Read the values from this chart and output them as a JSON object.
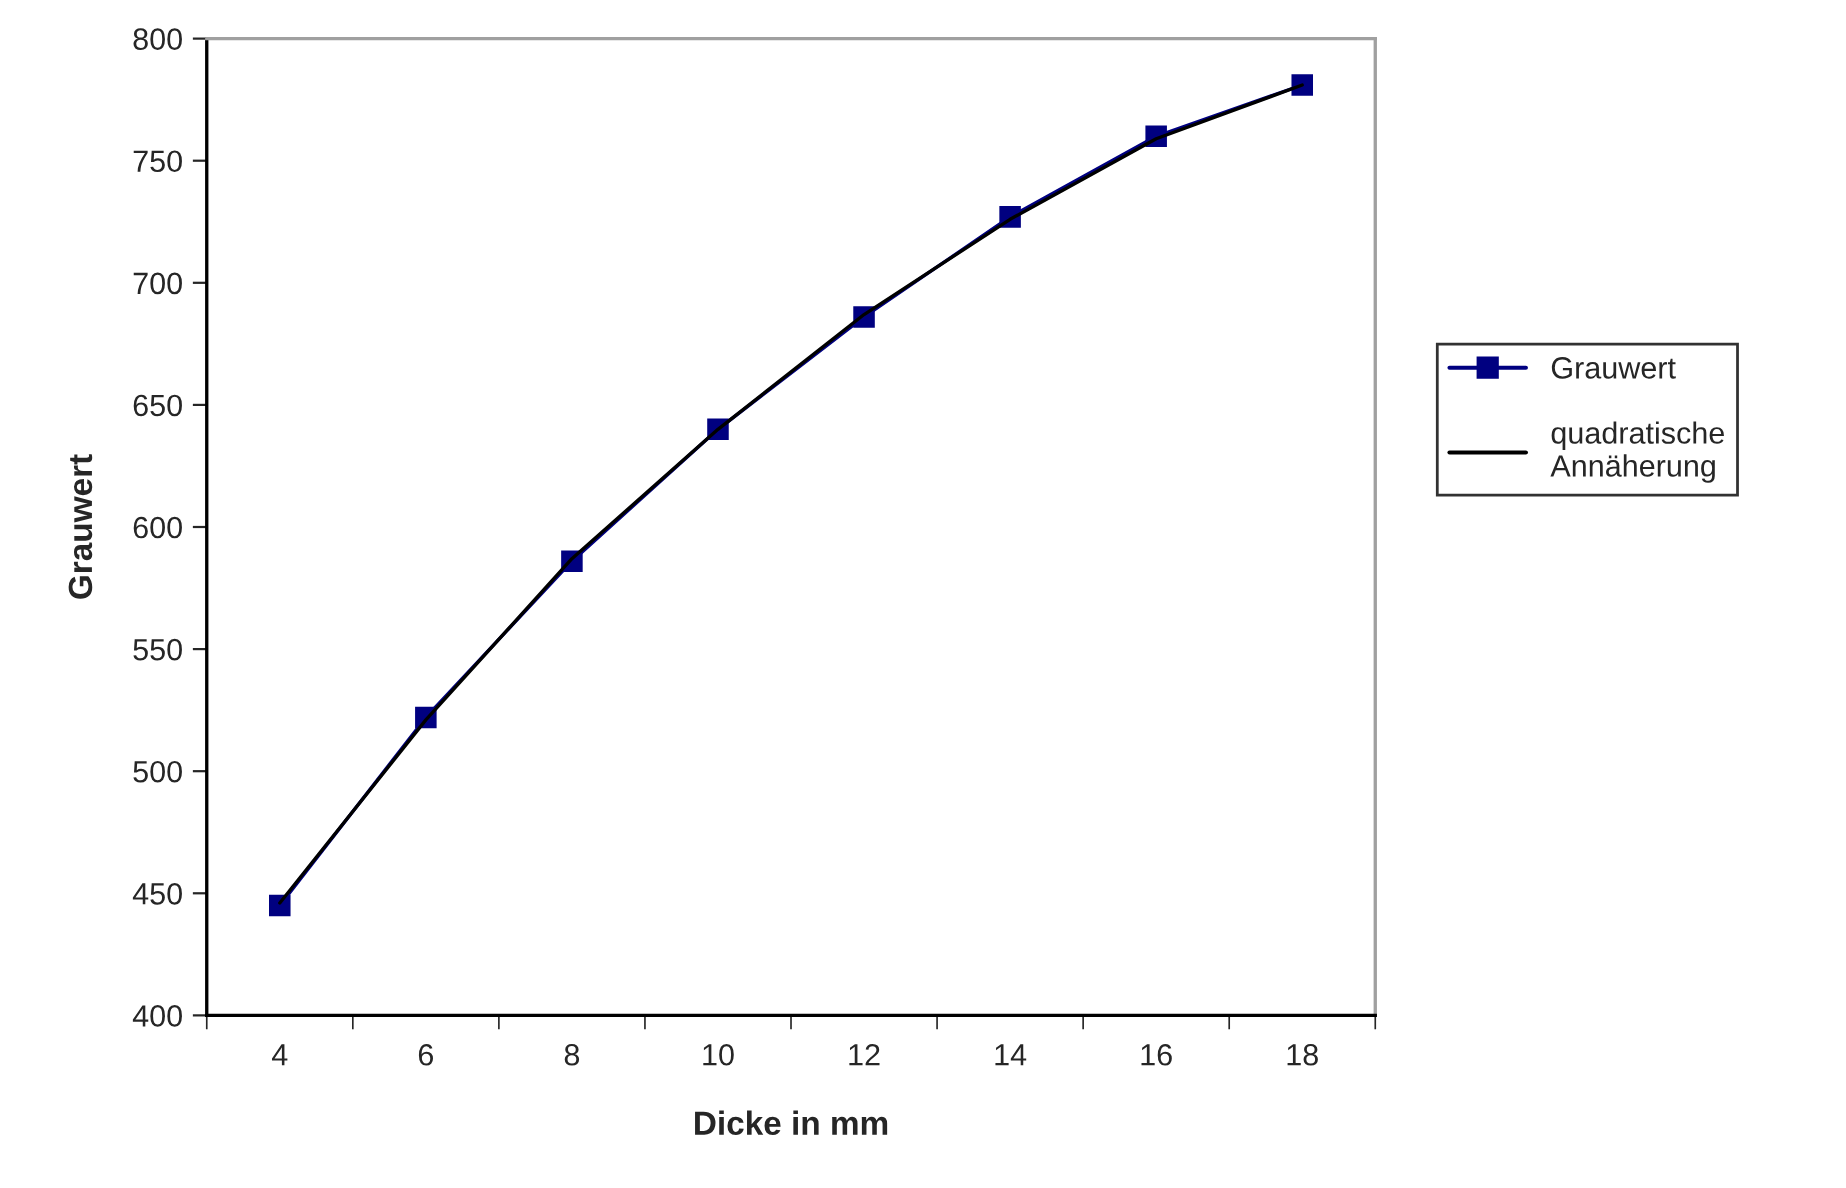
{
  "chart_data": {
    "type": "line",
    "xlabel": "Dicke in mm",
    "ylabel": "Grauwert",
    "categories": [
      "4",
      "6",
      "8",
      "10",
      "12",
      "14",
      "16",
      "18"
    ],
    "series": [
      {
        "name": "Grauwert",
        "color": "#000080",
        "marker": "square",
        "values": [
          445,
          522,
          586,
          640,
          686,
          727,
          760,
          781
        ]
      },
      {
        "name": "quadratische\nAnnäherung",
        "color": "#000000",
        "marker": "none",
        "values": [
          446,
          521,
          587,
          640,
          687,
          726,
          759,
          781
        ]
      }
    ],
    "ylim": [
      400,
      800
    ],
    "yticks": [
      400,
      450,
      500,
      550,
      600,
      650,
      700,
      750,
      800
    ],
    "grid": false,
    "legend": "right",
    "line_style": "solid"
  }
}
